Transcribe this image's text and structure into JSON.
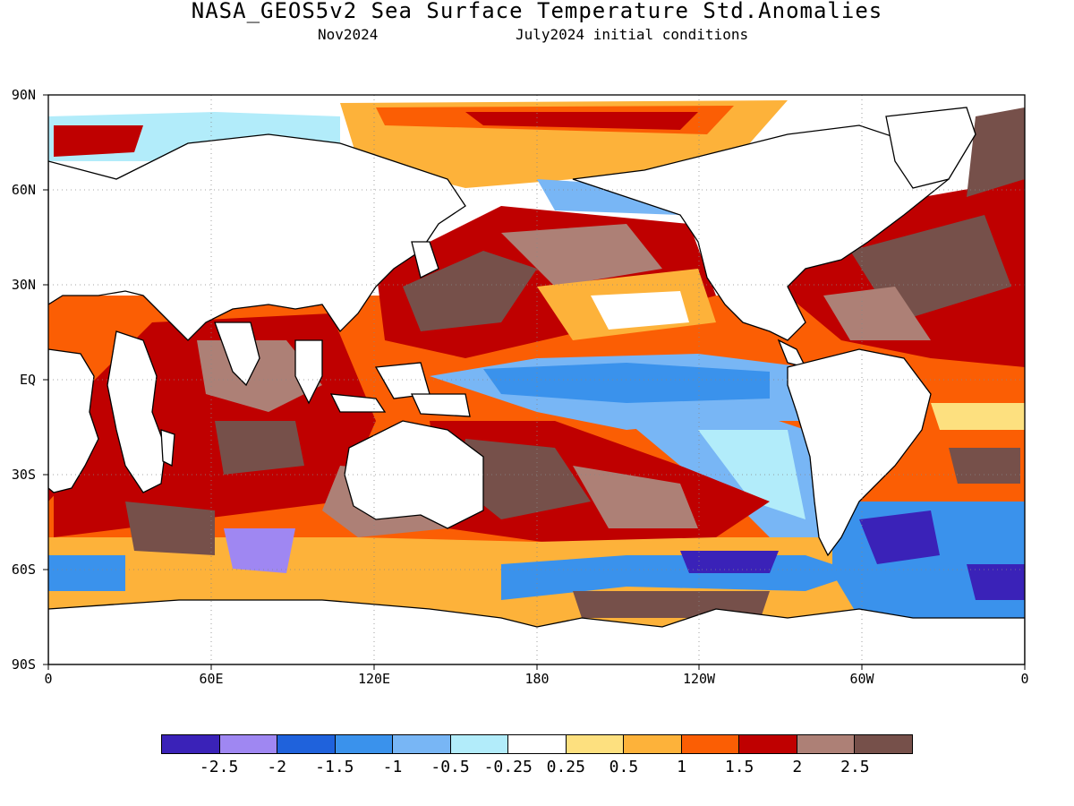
{
  "title": "NASA_GEOS5v2 Sea Surface Temperature Std.Anomalies",
  "subtitle_left": "Nov2024",
  "subtitle_right": "July2024 initial conditions",
  "lat_labels": [
    "90N",
    "60N",
    "30N",
    "EQ",
    "30S",
    "60S",
    "90S"
  ],
  "lon_labels": [
    "0",
    "60E",
    "120E",
    "180",
    "120W",
    "60W",
    "0"
  ],
  "colorbar": {
    "colors": [
      "#3a22b8",
      "#9f87f2",
      "#1f62dc",
      "#3a92ec",
      "#78b6f5",
      "#b2ecfa",
      "#ffffff",
      "#fde07f",
      "#fdb23a",
      "#fb5e04",
      "#bf0000",
      "#ad8076",
      "#76504a"
    ],
    "labels": [
      "-2.5",
      "-2",
      "-1.5",
      "-1",
      "-0.5",
      "-0.25",
      "0.25",
      "0.5",
      "1",
      "1.5",
      "2",
      "2.5"
    ]
  }
}
